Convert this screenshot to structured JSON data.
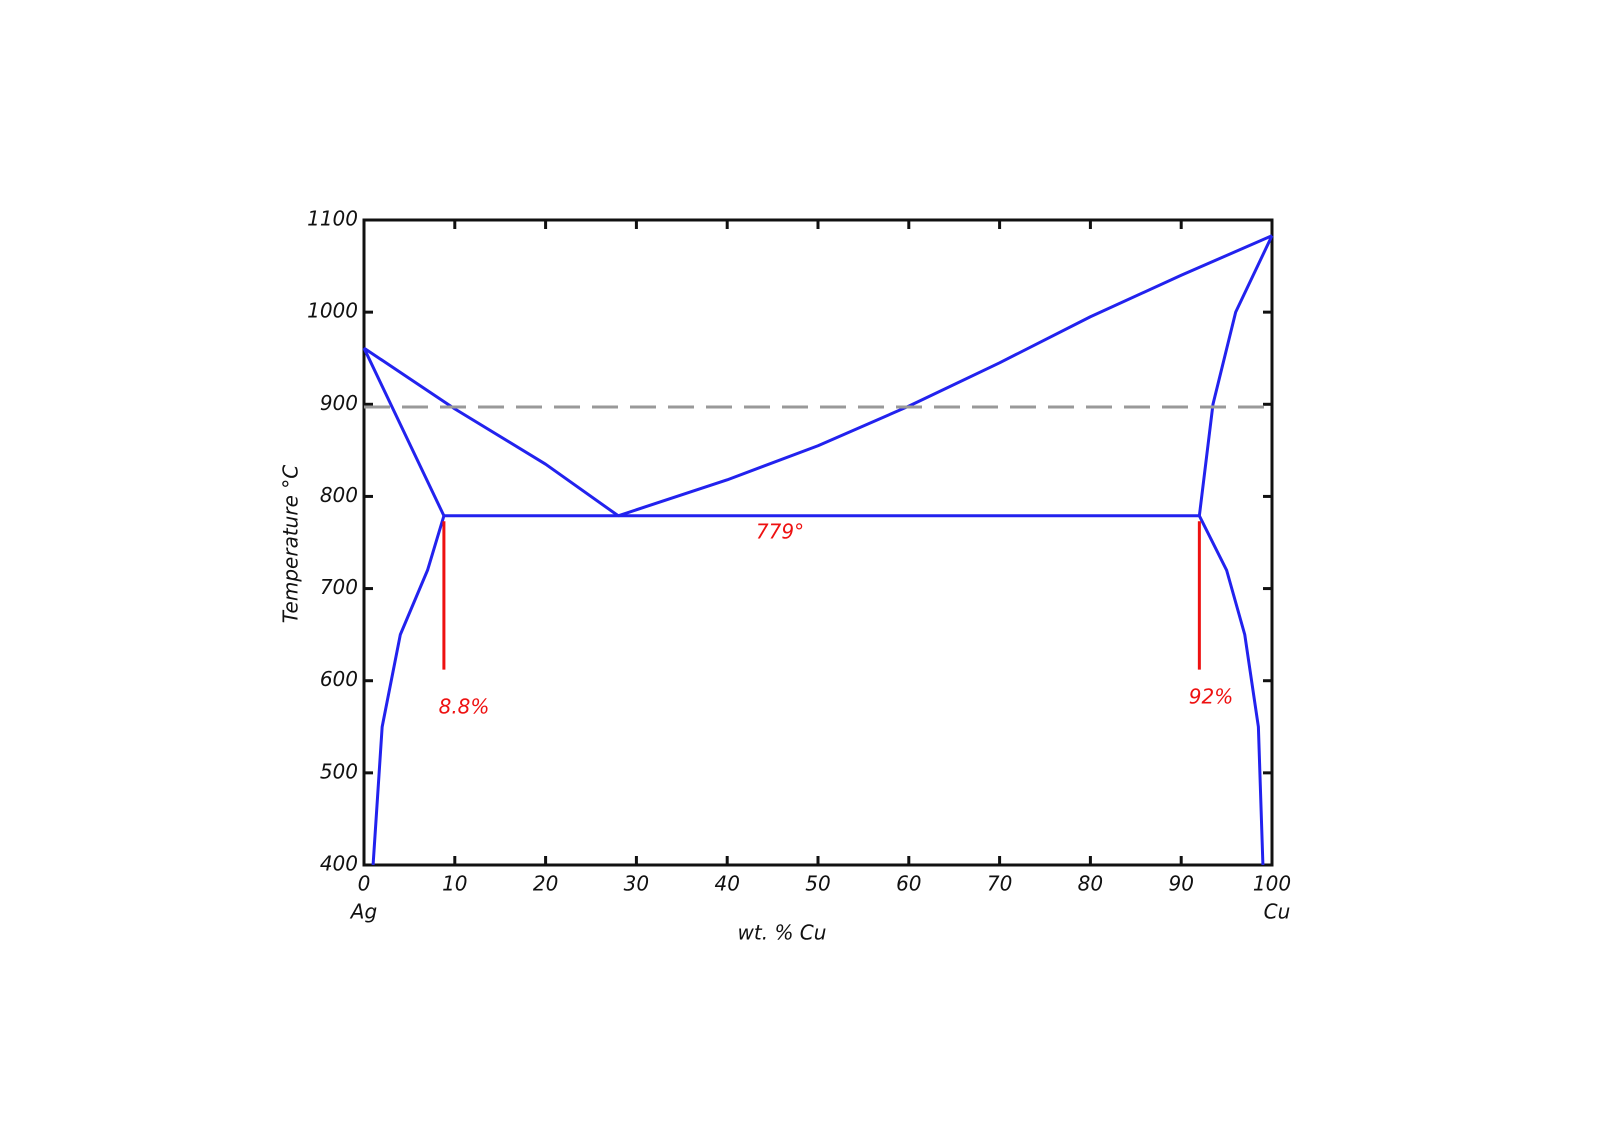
{
  "chart_data": {
    "type": "line",
    "x_label": "wt. % Cu",
    "y_label": "Temperature °C",
    "component_labels": [
      "Ag",
      "Cu"
    ],
    "xlim": [
      0,
      100
    ],
    "xticks": [
      0,
      10,
      20,
      30,
      40,
      50,
      60,
      70,
      80,
      90,
      100
    ],
    "ylim": [
      400,
      1100
    ],
    "yticks": [
      400,
      500,
      600,
      700,
      800,
      900,
      1000,
      1100
    ],
    "annotations": [
      "779°",
      "8.8%",
      "92%"
    ],
    "series": [
      {
        "color": "#2222ee",
        "x": [
          0,
          10,
          20,
          28
        ],
        "values": [
          961,
          895,
          835,
          779
        ]
      },
      {
        "color": "#2222ee",
        "x": [
          28,
          40,
          50,
          60,
          70,
          80,
          90,
          100
        ],
        "values": [
          779,
          818,
          855,
          898,
          945,
          995,
          1040,
          1083
        ]
      },
      {
        "color": "#2222ee",
        "x": [
          0,
          8.8
        ],
        "values": [
          961,
          779
        ]
      },
      {
        "color": "#2222ee",
        "x": [
          92,
          93.5,
          96,
          100
        ],
        "values": [
          779,
          900,
          1000,
          1083
        ]
      },
      {
        "color": "#2222ee",
        "x": [
          8.8,
          92
        ],
        "values": [
          779,
          779
        ]
      },
      {
        "color": "#2222ee",
        "x": [
          8.8,
          7,
          4,
          2,
          1
        ],
        "values": [
          779,
          720,
          650,
          550,
          400
        ]
      },
      {
        "color": "#2222ee",
        "x": [
          92,
          95,
          97,
          98.5,
          99
        ],
        "values": [
          779,
          720,
          650,
          550,
          400
        ]
      },
      {
        "color": "#999999",
        "dash": true,
        "x": [
          0,
          100
        ],
        "values": [
          897,
          897
        ]
      },
      {
        "color": "#ee1111",
        "x": [
          8.8,
          8.8
        ],
        "values": [
          773,
          612
        ]
      },
      {
        "color": "#ee1111",
        "x": [
          92,
          92
        ],
        "values": [
          773,
          612
        ]
      }
    ]
  }
}
